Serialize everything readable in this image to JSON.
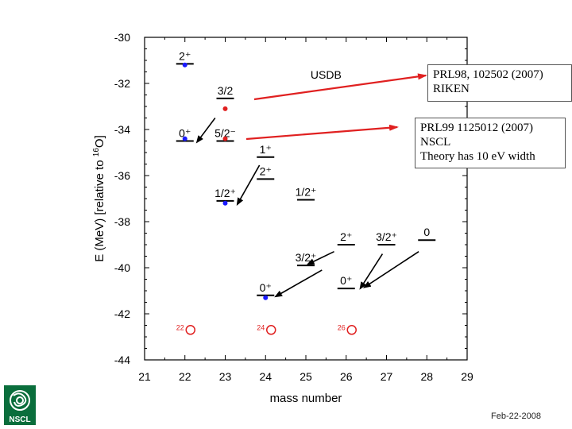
{
  "chart_data": {
    "type": "scatter",
    "xlabel": "mass number",
    "ylabel": "E (MeV) [relative to ",
    "ylabel_sup": "16",
    "ylabel_end": "O]",
    "xlim": [
      21,
      29
    ],
    "ylim": [
      -44,
      -30
    ],
    "xticks": [
      "21",
      "22",
      "23",
      "24",
      "25",
      "26",
      "27",
      "28",
      "29"
    ],
    "yticks": [
      "-30",
      "-32",
      "-34",
      "-36",
      "-38",
      "-40",
      "-42",
      "-44"
    ],
    "yticks_values": [
      -30,
      -32,
      -34,
      -36,
      -38,
      -40,
      -42,
      -44
    ],
    "grid": false,
    "level_color": "#000000",
    "exp_color_blue": "#1a1aff",
    "exp_color_red": "#e02020",
    "arrow_color": "#e02020",
    "levels": [
      {
        "x": 22,
        "y": -31.15,
        "label": "2⁺"
      },
      {
        "x": 22,
        "y": -34.5,
        "label": "0⁺"
      },
      {
        "x": 23,
        "y": -32.65,
        "label": "3/2"
      },
      {
        "x": 23,
        "y": -34.5,
        "label": "5/2⁻"
      },
      {
        "x": 24,
        "y": -35.2,
        "label": "1⁺"
      },
      {
        "x": 24,
        "y": -36.15,
        "label": "2⁺"
      },
      {
        "x": 23,
        "y": -37.1,
        "label": "1/2⁺"
      },
      {
        "x": 25,
        "y": -37.05,
        "label": "1/2⁺"
      },
      {
        "x": 26,
        "y": -39.0,
        "label": "2⁺"
      },
      {
        "x": 27,
        "y": -39.0,
        "label": "3/2⁺"
      },
      {
        "x": 28,
        "y": -38.8,
        "label": "0"
      },
      {
        "x": 25,
        "y": -39.9,
        "label": "3/2⁺"
      },
      {
        "x": 26,
        "y": -40.9,
        "label": "0⁺"
      },
      {
        "x": 24,
        "y": -41.2,
        "label": "0⁺"
      }
    ],
    "exp_points": [
      {
        "x": 22,
        "y": -31.2,
        "color": "blue"
      },
      {
        "x": 22,
        "y": -34.4,
        "color": "blue"
      },
      {
        "x": 23,
        "y": -33.1,
        "color": "red"
      },
      {
        "x": 23,
        "y": -34.4,
        "color": "red"
      },
      {
        "x": 23,
        "y": -37.2,
        "color": "blue"
      },
      {
        "x": 24,
        "y": -41.3,
        "color": "blue"
      }
    ],
    "circle_markers": [
      {
        "x": 22,
        "y": -42.7,
        "label": "22"
      },
      {
        "x": 24,
        "y": -42.7,
        "label": "24"
      },
      {
        "x": 26,
        "y": -42.7,
        "label": "26"
      }
    ],
    "usdb_label": "USDB",
    "usdb_pos": {
      "x": 25.5,
      "y": -31.8
    },
    "black_arrows": [
      {
        "from": [
          22.75,
          -33.5
        ],
        "to": [
          22.3,
          -34.55
        ]
      },
      {
        "from": [
          23.85,
          -35.55
        ],
        "to": [
          23.3,
          -37.25
        ]
      },
      {
        "from": [
          25.7,
          -39.3
        ],
        "to": [
          25.05,
          -39.85
        ]
      },
      {
        "from": [
          26.9,
          -39.4
        ],
        "to": [
          26.35,
          -40.9
        ]
      },
      {
        "from": [
          27.8,
          -39.3
        ],
        "to": [
          26.45,
          -40.85
        ]
      },
      {
        "from": [
          25.4,
          -40.1
        ],
        "to": [
          24.25,
          -41.25
        ]
      }
    ]
  },
  "annotations": [
    {
      "lines": [
        "PRL98, 102502 (2007)",
        "RIKEN"
      ]
    },
    {
      "lines": [
        "PRL99 1125012 (2007)",
        "NSCL",
        "Theory has 10 eV width"
      ]
    }
  ],
  "logo": {
    "name": "NSCL",
    "color": "#0a6e3c"
  },
  "footer": {
    "date": "Feb-22-2008"
  }
}
